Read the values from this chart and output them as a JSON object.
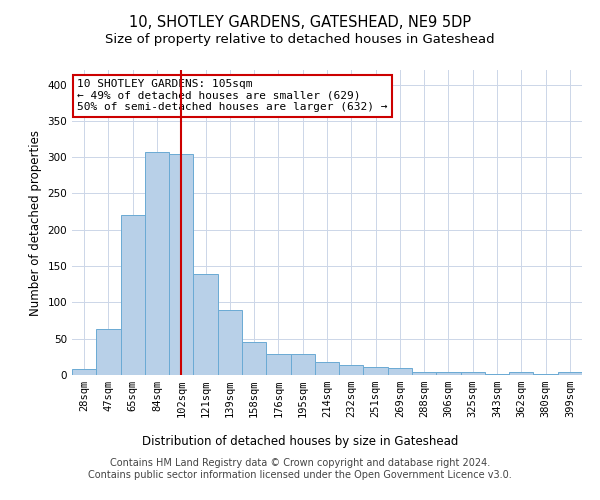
{
  "title": "10, SHOTLEY GARDENS, GATESHEAD, NE9 5DP",
  "subtitle": "Size of property relative to detached houses in Gateshead",
  "xlabel": "Distribution of detached houses by size in Gateshead",
  "ylabel": "Number of detached properties",
  "categories": [
    "28sqm",
    "47sqm",
    "65sqm",
    "84sqm",
    "102sqm",
    "121sqm",
    "139sqm",
    "158sqm",
    "176sqm",
    "195sqm",
    "214sqm",
    "232sqm",
    "251sqm",
    "269sqm",
    "288sqm",
    "306sqm",
    "325sqm",
    "343sqm",
    "362sqm",
    "380sqm",
    "399sqm"
  ],
  "values": [
    8,
    63,
    221,
    307,
    304,
    139,
    89,
    45,
    29,
    29,
    18,
    14,
    11,
    10,
    4,
    4,
    4,
    2,
    4,
    2,
    4
  ],
  "bar_color": "#b8d0e8",
  "bar_edge_color": "#6aaad4",
  "vline_x": 4,
  "vline_color": "#cc0000",
  "annotation_text": "10 SHOTLEY GARDENS: 105sqm\n← 49% of detached houses are smaller (629)\n50% of semi-detached houses are larger (632) →",
  "annotation_box_color": "#ffffff",
  "annotation_box_edge": "#cc0000",
  "ylim": [
    0,
    420
  ],
  "yticks": [
    0,
    50,
    100,
    150,
    200,
    250,
    300,
    350,
    400
  ],
  "footer_line1": "Contains HM Land Registry data © Crown copyright and database right 2024.",
  "footer_line2": "Contains public sector information licensed under the Open Government Licence v3.0.",
  "bg_color": "#ffffff",
  "grid_color": "#ccd6e8",
  "title_fontsize": 10.5,
  "subtitle_fontsize": 9.5,
  "axis_label_fontsize": 8.5,
  "tick_fontsize": 7.5,
  "footer_fontsize": 7,
  "annotation_fontsize": 8
}
